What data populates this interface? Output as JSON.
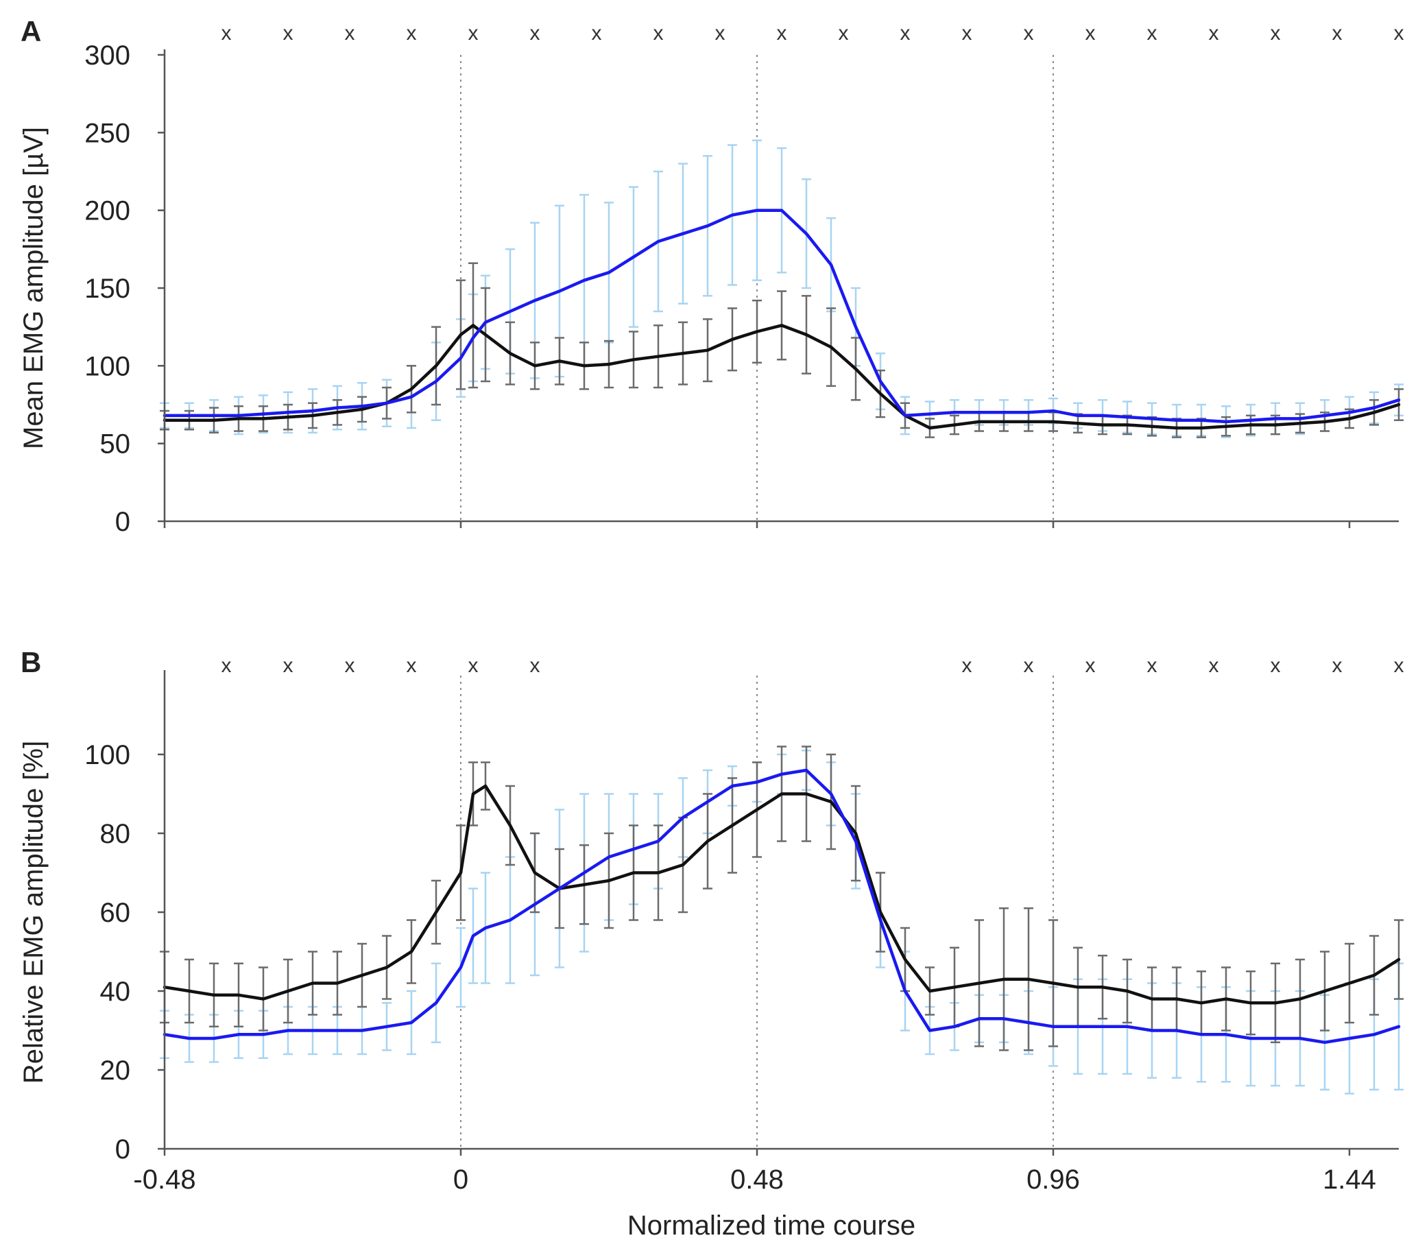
{
  "figure": {
    "xlabel": "Normalized time course",
    "x_ticks": [
      -0.48,
      0,
      0.48,
      0.96,
      1.44
    ],
    "x_tick_labels": [
      "-0.48",
      "0",
      "0.48",
      "0.96",
      "1.44"
    ],
    "x_range": [
      -0.48,
      1.52
    ],
    "vlines": [
      0,
      0.48,
      0.96
    ],
    "colors": {
      "blue": "#1a1af0",
      "black": "#111111",
      "lightblue": "#a8d4f2",
      "gray": "#6b6b6b"
    }
  },
  "chart_data": [
    {
      "panel": "A",
      "type": "line",
      "title": "",
      "xlabel": "Normalized time course",
      "ylabel": "Mean EMG amplitude [µV]",
      "ylim": [
        0,
        300
      ],
      "y_ticks": [
        0,
        50,
        100,
        150,
        200,
        250,
        300
      ],
      "significance_marker": "x",
      "significance_x": [
        -0.38,
        -0.28,
        -0.18,
        -0.08,
        0.02,
        0.12,
        0.22,
        0.32,
        0.42,
        0.52,
        0.62,
        0.72,
        0.82,
        0.92,
        1.02,
        1.12,
        1.22,
        1.32,
        1.42,
        1.52
      ],
      "x": [
        -0.48,
        -0.44,
        -0.4,
        -0.36,
        -0.32,
        -0.28,
        -0.24,
        -0.2,
        -0.16,
        -0.12,
        -0.08,
        -0.04,
        0.0,
        0.02,
        0.04,
        0.08,
        0.12,
        0.16,
        0.2,
        0.24,
        0.28,
        0.32,
        0.36,
        0.4,
        0.44,
        0.48,
        0.52,
        0.56,
        0.6,
        0.64,
        0.68,
        0.72,
        0.76,
        0.8,
        0.84,
        0.88,
        0.92,
        0.96,
        1.0,
        1.04,
        1.08,
        1.12,
        1.16,
        1.2,
        1.24,
        1.28,
        1.32,
        1.36,
        1.4,
        1.44,
        1.48,
        1.52
      ],
      "series": [
        {
          "name": "blue",
          "color": "#1a1af0",
          "error_color": "#a8d4f2",
          "values": [
            68,
            68,
            68,
            68,
            69,
            70,
            71,
            73,
            74,
            76,
            80,
            90,
            105,
            118,
            128,
            135,
            142,
            148,
            155,
            160,
            170,
            180,
            185,
            190,
            197,
            200,
            200,
            185,
            165,
            125,
            90,
            68,
            69,
            70,
            70,
            70,
            70,
            71,
            68,
            68,
            67,
            66,
            65,
            65,
            64,
            65,
            66,
            66,
            68,
            70,
            73,
            78
          ],
          "errors": [
            8,
            8,
            10,
            12,
            12,
            13,
            14,
            14,
            15,
            15,
            20,
            25,
            25,
            28,
            30,
            40,
            50,
            55,
            55,
            45,
            45,
            45,
            45,
            45,
            45,
            45,
            40,
            35,
            30,
            25,
            18,
            12,
            8,
            8,
            8,
            8,
            8,
            8,
            8,
            10,
            10,
            10,
            10,
            10,
            10,
            10,
            10,
            10,
            10,
            10,
            10,
            10
          ]
        },
        {
          "name": "black",
          "color": "#111111",
          "error_color": "#6b6b6b",
          "values": [
            65,
            65,
            65,
            66,
            66,
            67,
            68,
            70,
            72,
            76,
            85,
            100,
            120,
            126,
            120,
            108,
            100,
            103,
            100,
            101,
            104,
            106,
            108,
            110,
            117,
            122,
            126,
            120,
            112,
            98,
            82,
            68,
            60,
            62,
            64,
            64,
            64,
            64,
            63,
            62,
            62,
            61,
            60,
            60,
            61,
            62,
            62,
            63,
            64,
            66,
            70,
            75
          ],
          "errors": [
            6,
            6,
            8,
            8,
            8,
            8,
            8,
            8,
            8,
            10,
            15,
            25,
            35,
            40,
            30,
            20,
            15,
            15,
            15,
            15,
            18,
            20,
            20,
            20,
            20,
            20,
            22,
            25,
            25,
            20,
            15,
            8,
            6,
            6,
            6,
            6,
            6,
            6,
            6,
            6,
            6,
            6,
            6,
            6,
            6,
            6,
            6,
            6,
            6,
            6,
            8,
            10
          ]
        }
      ]
    },
    {
      "panel": "B",
      "type": "line",
      "title": "",
      "xlabel": "Normalized time course",
      "ylabel": "Relative EMG amplitude [%]",
      "ylim": [
        0,
        120
      ],
      "y_ticks": [
        0,
        20,
        40,
        60,
        80,
        100
      ],
      "significance_marker": "x",
      "significance_x": [
        -0.38,
        -0.28,
        -0.18,
        -0.08,
        0.02,
        0.12,
        0.82,
        0.92,
        1.02,
        1.12,
        1.22,
        1.32,
        1.42,
        1.52
      ],
      "x": [
        -0.48,
        -0.44,
        -0.4,
        -0.36,
        -0.32,
        -0.28,
        -0.24,
        -0.2,
        -0.16,
        -0.12,
        -0.08,
        -0.04,
        0.0,
        0.02,
        0.04,
        0.08,
        0.12,
        0.16,
        0.2,
        0.24,
        0.28,
        0.32,
        0.36,
        0.4,
        0.44,
        0.48,
        0.52,
        0.56,
        0.6,
        0.64,
        0.68,
        0.72,
        0.76,
        0.8,
        0.84,
        0.88,
        0.92,
        0.96,
        1.0,
        1.04,
        1.08,
        1.12,
        1.16,
        1.2,
        1.24,
        1.28,
        1.32,
        1.36,
        1.4,
        1.44,
        1.48,
        1.52
      ],
      "series": [
        {
          "name": "blue",
          "color": "#1a1af0",
          "error_color": "#a8d4f2",
          "values": [
            29,
            28,
            28,
            29,
            29,
            30,
            30,
            30,
            30,
            31,
            32,
            37,
            46,
            54,
            56,
            58,
            62,
            66,
            70,
            74,
            76,
            78,
            84,
            88,
            92,
            93,
            95,
            96,
            90,
            78,
            58,
            40,
            30,
            31,
            33,
            33,
            32,
            31,
            31,
            31,
            31,
            30,
            30,
            29,
            29,
            28,
            28,
            28,
            27,
            28,
            29,
            31
          ],
          "errors": [
            6,
            6,
            6,
            6,
            6,
            6,
            6,
            6,
            6,
            6,
            8,
            10,
            10,
            12,
            14,
            16,
            18,
            20,
            20,
            16,
            14,
            12,
            10,
            8,
            5,
            5,
            5,
            5,
            8,
            12,
            12,
            10,
            6,
            6,
            6,
            6,
            8,
            10,
            12,
            12,
            12,
            12,
            12,
            12,
            12,
            12,
            12,
            12,
            12,
            14,
            14,
            16
          ]
        },
        {
          "name": "black",
          "color": "#111111",
          "error_color": "#6b6b6b",
          "values": [
            41,
            40,
            39,
            39,
            38,
            40,
            42,
            42,
            44,
            46,
            50,
            60,
            70,
            90,
            92,
            82,
            70,
            66,
            67,
            68,
            70,
            70,
            72,
            78,
            82,
            86,
            90,
            90,
            88,
            80,
            60,
            48,
            40,
            41,
            42,
            43,
            43,
            42,
            41,
            41,
            40,
            38,
            38,
            37,
            38,
            37,
            37,
            38,
            40,
            42,
            44,
            48
          ],
          "errors": [
            9,
            8,
            8,
            8,
            8,
            8,
            8,
            8,
            8,
            8,
            8,
            8,
            12,
            8,
            6,
            10,
            10,
            10,
            10,
            12,
            12,
            12,
            12,
            12,
            12,
            12,
            12,
            12,
            12,
            12,
            10,
            8,
            6,
            10,
            16,
            18,
            18,
            16,
            10,
            8,
            8,
            8,
            8,
            8,
            8,
            8,
            10,
            10,
            10,
            10,
            10,
            10
          ]
        }
      ]
    }
  ]
}
